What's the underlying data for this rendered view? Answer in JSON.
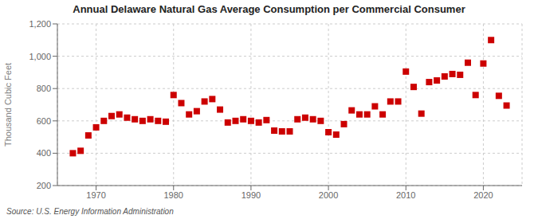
{
  "chart_data": {
    "type": "scatter",
    "title": "Annual Delaware Natural Gas Average Consumption per Commercial Consumer",
    "ylabel": "Thousand Cubic Feet",
    "annotations": [
      "Source: U.S. Energy Information Administration"
    ],
    "x": [
      1967,
      1968,
      1969,
      1970,
      1971,
      1972,
      1973,
      1974,
      1975,
      1976,
      1977,
      1978,
      1979,
      1980,
      1981,
      1982,
      1983,
      1984,
      1985,
      1986,
      1987,
      1988,
      1989,
      1990,
      1991,
      1992,
      1993,
      1994,
      1995,
      1996,
      1997,
      1998,
      1999,
      2000,
      2001,
      2002,
      2003,
      2004,
      2005,
      2006,
      2007,
      2008,
      2009,
      2010,
      2011,
      2012,
      2013,
      2014,
      2015,
      2016,
      2017,
      2018,
      2019,
      2020,
      2021,
      2022,
      2023
    ],
    "values": [
      400,
      415,
      510,
      560,
      600,
      630,
      640,
      620,
      610,
      600,
      610,
      600,
      595,
      760,
      710,
      640,
      660,
      720,
      735,
      670,
      590,
      600,
      610,
      600,
      590,
      605,
      540,
      535,
      535,
      610,
      620,
      610,
      600,
      530,
      515,
      580,
      665,
      640,
      640,
      690,
      640,
      720,
      720,
      905,
      810,
      645,
      840,
      850,
      875,
      890,
      885,
      960,
      760,
      955,
      1100,
      755,
      695
    ],
    "color": "#cc0000",
    "marker": "square",
    "xlim": [
      1965,
      2025
    ],
    "ylim": [
      200,
      1200
    ],
    "xticks": [
      1970,
      1980,
      1990,
      2000,
      2010,
      2020
    ],
    "yticks": [
      200,
      400,
      600,
      800,
      {
        "value": 1000,
        "label": "1,000"
      },
      {
        "value": 1200,
        "label": "1,200"
      }
    ],
    "grid": true
  }
}
